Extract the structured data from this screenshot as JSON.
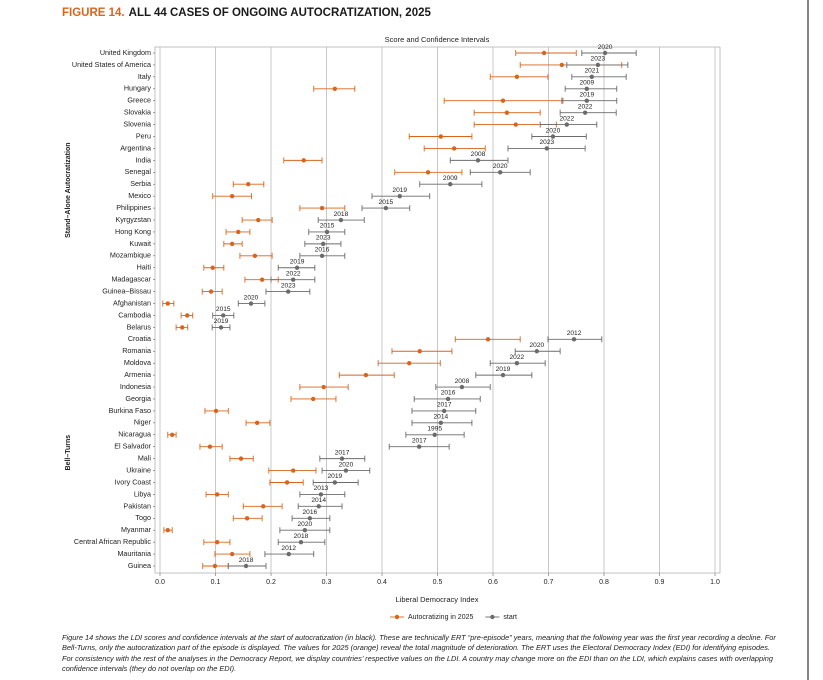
{
  "chart_data": {
    "type": "dot-interval",
    "figure_label": "FIGURE 14.",
    "title": "ALL 44 CASES OF ONGOING AUTOCRATIZATION, 2025",
    "subtitle": "Score and Confidence Intervals",
    "xlabel": "Liberal Democracy Index",
    "xlim": [
      0,
      1
    ],
    "xticks": [
      {
        "value": 0,
        "label": "0.0"
      },
      0.1,
      0.2,
      0.3,
      0.4,
      0.5,
      0.6,
      0.7,
      0.8,
      0.9,
      {
        "value": 1,
        "label": "1.0"
      }
    ],
    "grid": true,
    "legend": "bottom",
    "groups": [
      {
        "name": "Stand–Alone Autocratization",
        "categories": [
          "United Kingdom",
          "United States of America",
          "Italy",
          "Hungary",
          "Greece",
          "Slovakia",
          "Slovenia",
          "Peru",
          "Argentina",
          "India",
          "Senegal",
          "Serbia",
          "Mexico",
          "Philippines",
          "Kyrgyzstan",
          "Hong Kong",
          "Kuwait",
          "Mozambique",
          "Haiti",
          "Madagascar",
          "Guinea–Bissau",
          "Afghanistan",
          "Cambodia",
          "Belarus"
        ]
      },
      {
        "name": "Bell–Turns",
        "categories": [
          "Croatia",
          "Romania",
          "Moldova",
          "Armenia",
          "Indonesia",
          "Georgia",
          "Burkina Faso",
          "Niger",
          "Nicaragua",
          "El Salvador",
          "Mali",
          "Ukraine",
          "Ivory Coast",
          "Libya",
          "Pakistan",
          "Togo",
          "Myanmar",
          "Central African Republic",
          "Mauritania",
          "Guinea"
        ]
      }
    ],
    "series": [
      {
        "name": "Autocratizing in 2025",
        "color": "#d9651c",
        "values": [
          0.692,
          0.724,
          0.643,
          0.315,
          0.618,
          0.625,
          0.641,
          0.506,
          0.53,
          0.259,
          0.483,
          0.159,
          0.13,
          0.292,
          0.177,
          0.141,
          0.13,
          0.171,
          0.095,
          0.184,
          0.092,
          0.014,
          0.049,
          0.04,
          0.591,
          0.468,
          0.449,
          0.371,
          0.295,
          0.276,
          0.101,
          0.175,
          0.022,
          0.09,
          0.146,
          0.24,
          0.229,
          0.103,
          0.186,
          0.157,
          0.014,
          0.103,
          0.13,
          0.099
        ],
        "low": [
          0.641,
          0.649,
          0.595,
          0.277,
          0.512,
          0.566,
          0.566,
          0.449,
          0.476,
          0.223,
          0.423,
          0.132,
          0.095,
          0.252,
          0.148,
          0.119,
          0.115,
          0.144,
          0.079,
          0.153,
          0.076,
          0.005,
          0.038,
          0.029,
          0.532,
          0.418,
          0.393,
          0.323,
          0.252,
          0.236,
          0.081,
          0.155,
          0.014,
          0.072,
          0.126,
          0.196,
          0.198,
          0.083,
          0.15,
          0.132,
          0.007,
          0.079,
          0.099,
          0.077
        ],
        "high": [
          0.75,
          0.832,
          0.699,
          0.351,
          0.726,
          0.685,
          0.714,
          0.562,
          0.586,
          0.292,
          0.544,
          0.187,
          0.165,
          0.333,
          0.202,
          0.162,
          0.148,
          0.202,
          0.115,
          0.213,
          0.112,
          0.025,
          0.059,
          0.05,
          0.649,
          0.526,
          0.505,
          0.422,
          0.339,
          0.317,
          0.123,
          0.198,
          0.029,
          0.112,
          0.168,
          0.281,
          0.258,
          0.123,
          0.22,
          0.184,
          0.022,
          0.126,
          0.162,
          0.123
        ]
      },
      {
        "name": "start",
        "color": "#6b6b6b",
        "values": [
          0.802,
          0.789,
          0.778,
          0.769,
          0.769,
          0.766,
          0.733,
          0.708,
          0.697,
          0.573,
          0.613,
          0.523,
          0.432,
          0.407,
          0.326,
          0.301,
          0.294,
          0.292,
          0.247,
          0.24,
          0.231,
          0.164,
          0.114,
          0.11,
          0.746,
          0.679,
          0.643,
          0.618,
          0.544,
          0.519,
          0.512,
          0.506,
          0.495,
          0.467,
          0.328,
          0.335,
          0.315,
          0.29,
          0.286,
          0.27,
          0.261,
          0.254,
          0.232,
          0.155
        ],
        "low": [
          0.76,
          0.733,
          0.742,
          0.73,
          0.724,
          0.721,
          0.685,
          0.67,
          0.627,
          0.523,
          0.559,
          0.468,
          0.382,
          0.364,
          0.285,
          0.268,
          0.261,
          0.252,
          0.213,
          0.2,
          0.191,
          0.141,
          0.095,
          0.094,
          0.699,
          0.64,
          0.595,
          0.569,
          0.497,
          0.458,
          0.454,
          0.454,
          0.443,
          0.413,
          0.288,
          0.292,
          0.276,
          0.252,
          0.249,
          0.238,
          0.216,
          0.213,
          0.189,
          0.123
        ],
        "high": [
          0.858,
          0.843,
          0.84,
          0.823,
          0.823,
          0.822,
          0.787,
          0.768,
          0.766,
          0.627,
          0.667,
          0.58,
          0.486,
          0.45,
          0.368,
          0.333,
          0.326,
          0.333,
          0.279,
          0.279,
          0.27,
          0.189,
          0.133,
          0.126,
          0.796,
          0.721,
          0.694,
          0.67,
          0.595,
          0.577,
          0.569,
          0.562,
          0.548,
          0.521,
          0.369,
          0.378,
          0.357,
          0.333,
          0.328,
          0.306,
          0.306,
          0.297,
          0.277,
          0.191
        ],
        "years": [
          2020,
          2023,
          2021,
          2009,
          2019,
          2022,
          2022,
          2020,
          2023,
          2008,
          2020,
          2009,
          2019,
          2015,
          2018,
          2015,
          2023,
          2016,
          2019,
          2022,
          2023,
          2020,
          2015,
          2019,
          2012,
          2020,
          2022,
          2019,
          2008,
          2016,
          2017,
          2014,
          1995,
          2017,
          2017,
          2020,
          2019,
          2013,
          2014,
          2016,
          2020,
          2018,
          2012,
          2018
        ]
      }
    ],
    "caption": "Figure 14 shows the LDI scores and confidence intervals at the start of autocratization (in black). These are technically ERT “pre-episode” years, meaning that the following year was the first year recording a decline. For Bell-Turns, only the autocratization part of the episode is displayed. The values for 2025 (orange) reveal the total magnitude of deterioration. The ERT uses the Electoral Democracy Index (EDI) for identifying episodes. For consistency with the rest of the analyses in the Democracy Report, we display countries’ respective values on the LDI. A country may change more on the EDI than on the LDI, which explains cases with overlapping confidence intervals (they do not overlap on the EDI)."
  }
}
